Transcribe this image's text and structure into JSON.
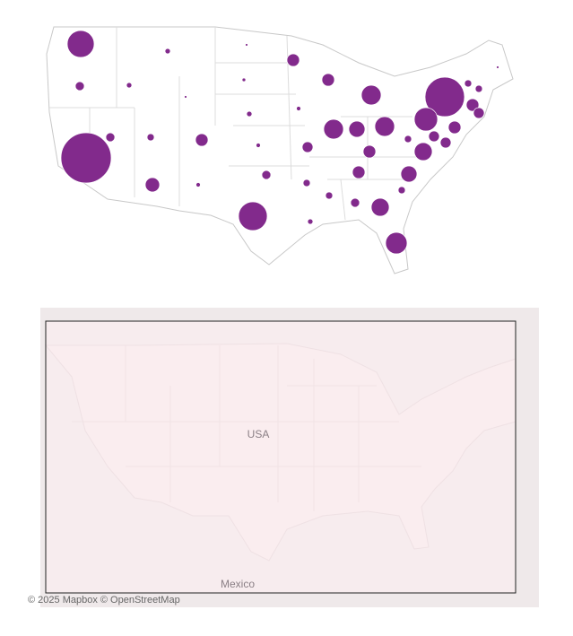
{
  "top_map": {
    "color": "#7b1f86",
    "bubbles": [
      225,
      25,
      9,
      9,
      2,
      49,
      49,
      121,
      484,
      16,
      2,
      16,
      49,
      36,
      169,
      49,
      36,
      784,
      25,
      16,
      49,
      2,
      4,
      9,
      6,
      6,
      121,
      81,
      121,
      36,
      49,
      16,
      100,
      81,
      49,
      16,
      100,
      25,
      16,
      16,
      9,
      25,
      256,
      64,
      6,
      144,
      36
    ]
  },
  "bottom_map": {
    "country_labels": [
      "USA",
      "Mexico"
    ],
    "attribution": "© 2025 Mapbox © OpenStreetMap"
  }
}
